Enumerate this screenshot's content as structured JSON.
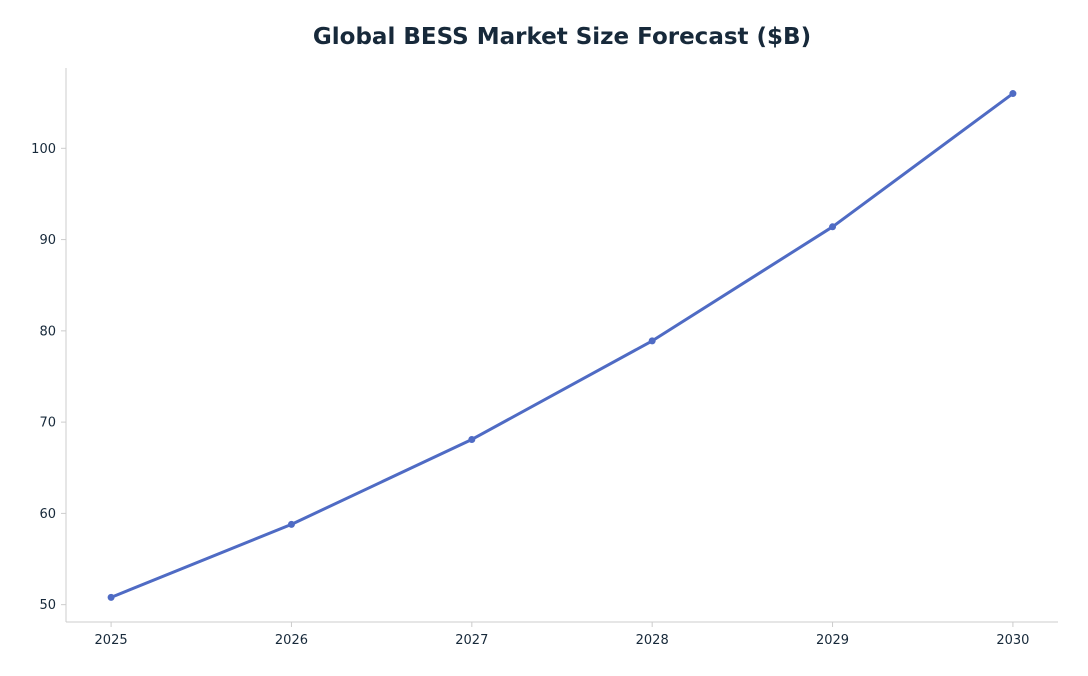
{
  "chart_data": {
    "type": "line",
    "title": "Global BESS Market Size Forecast ($B)",
    "xlabel": "",
    "ylabel": "",
    "x": [
      2025,
      2026,
      2027,
      2028,
      2029,
      2030
    ],
    "x_tick_labels": [
      "2025",
      "2026",
      "2027",
      "2028",
      "2029",
      "2030"
    ],
    "y_ticks": [
      50,
      60,
      70,
      80,
      90,
      100
    ],
    "y_tick_labels": [
      "50",
      "60",
      "70",
      "80",
      "90",
      "100"
    ],
    "xlim": [
      2024.75,
      2030.25
    ],
    "ylim": [
      48.1,
      108.8
    ],
    "series": [
      {
        "values": [
          50.8,
          58.8,
          68.1,
          78.9,
          91.4,
          106.0
        ],
        "color": "#4f6bc4"
      }
    ],
    "grid": false,
    "legend": "none",
    "colors": {
      "line": "#4f6bc4",
      "title": "#17293a",
      "tick_text": "#17293a",
      "axis": "#cccccc"
    }
  }
}
